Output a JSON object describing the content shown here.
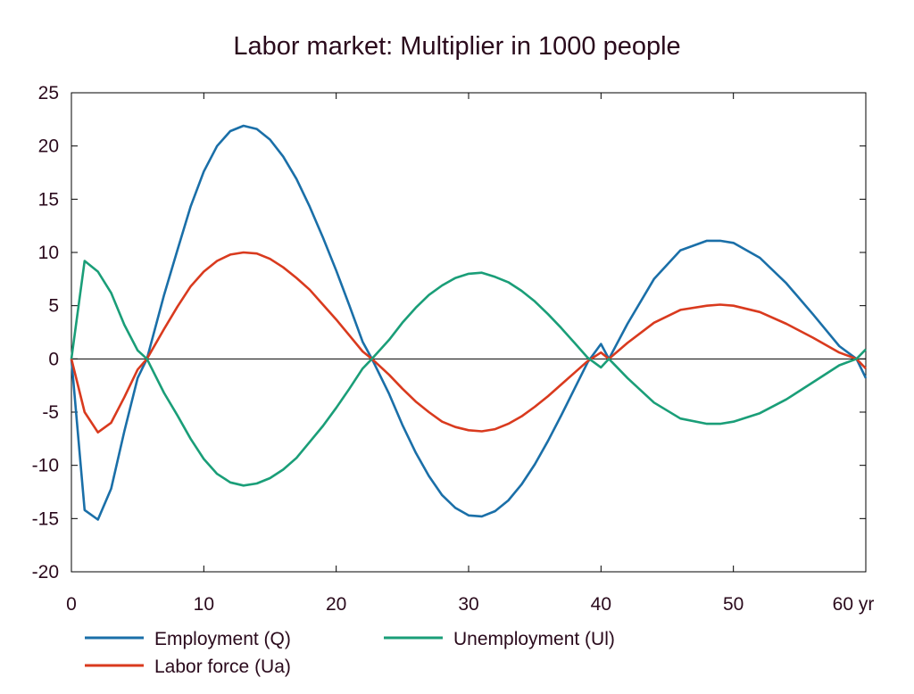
{
  "chart_data": {
    "type": "line",
    "title": "Labor market: Multiplier in 1000 people",
    "xlabel": "",
    "ylabel": "",
    "x_unit": "yr",
    "xlim": [
      0,
      60
    ],
    "ylim": [
      -20,
      25
    ],
    "x_ticks": [
      0,
      10,
      20,
      30,
      40,
      50,
      60
    ],
    "x_tick_labels": [
      "0",
      "10",
      "20",
      "30",
      "40",
      "50",
      "60 yr"
    ],
    "y_ticks": [
      -20,
      -15,
      -10,
      -5,
      0,
      5,
      10,
      15,
      20,
      25
    ],
    "y_tick_labels": [
      "-20",
      "-15",
      "-10",
      "-5",
      "0",
      "5",
      "10",
      "15",
      "20",
      "25"
    ],
    "grid": false,
    "zero_line": true,
    "legend_position": "bottom",
    "x": [
      0,
      1,
      2,
      3,
      4,
      5,
      5.7,
      7,
      8,
      9,
      10,
      11,
      12,
      13,
      14,
      15,
      16,
      17,
      18,
      19,
      20,
      21,
      22,
      22.7,
      24,
      25,
      26,
      27,
      28,
      29,
      30,
      31,
      32,
      33,
      34,
      35,
      36,
      37,
      38,
      39,
      40,
      40.6,
      42,
      44,
      46,
      48,
      49,
      50,
      52,
      54,
      56,
      58,
      59.3,
      60
    ],
    "series": [
      {
        "name": "Employment (Q)",
        "color": "#1a6fa8",
        "values": [
          0,
          -14.2,
          -15.1,
          -12.2,
          -6.8,
          -1.8,
          0,
          6.0,
          10.2,
          14.3,
          17.6,
          20.0,
          21.4,
          21.9,
          21.6,
          20.6,
          19.0,
          16.9,
          14.3,
          11.4,
          8.3,
          5.0,
          1.6,
          0,
          -3.3,
          -6.2,
          -8.8,
          -11.0,
          -12.8,
          -14.0,
          -14.7,
          -14.8,
          -14.3,
          -13.3,
          -11.8,
          -9.9,
          -7.7,
          -5.3,
          -2.8,
          -0.3,
          1.4,
          0,
          3.3,
          7.5,
          10.2,
          11.1,
          11.1,
          10.9,
          9.5,
          7.1,
          4.2,
          1.2,
          0,
          -1.8
        ]
      },
      {
        "name": "Labor force (Ua)",
        "color": "#d93a1e",
        "values": [
          0,
          -5.0,
          -6.9,
          -6.0,
          -3.6,
          -1.0,
          0,
          2.8,
          4.9,
          6.8,
          8.2,
          9.2,
          9.8,
          10.0,
          9.9,
          9.4,
          8.6,
          7.6,
          6.5,
          5.1,
          3.7,
          2.2,
          0.7,
          0,
          -1.5,
          -2.8,
          -4.0,
          -5.0,
          -5.9,
          -6.4,
          -6.7,
          -6.8,
          -6.6,
          -6.1,
          -5.4,
          -4.5,
          -3.5,
          -2.4,
          -1.3,
          -0.2,
          0.6,
          0,
          1.5,
          3.4,
          4.6,
          5.0,
          5.1,
          5.0,
          4.4,
          3.3,
          2.0,
          0.6,
          0,
          -0.9
        ]
      },
      {
        "name": "Unemployment (Ul)",
        "color": "#1a9e78",
        "values": [
          0,
          9.2,
          8.2,
          6.2,
          3.2,
          0.8,
          0,
          -3.2,
          -5.3,
          -7.5,
          -9.4,
          -10.8,
          -11.6,
          -11.9,
          -11.7,
          -11.2,
          -10.4,
          -9.3,
          -7.8,
          -6.3,
          -4.6,
          -2.8,
          -0.9,
          0,
          1.8,
          3.4,
          4.8,
          6.0,
          6.9,
          7.6,
          8.0,
          8.1,
          7.7,
          7.2,
          6.4,
          5.4,
          4.2,
          2.9,
          1.5,
          0.1,
          -0.8,
          0,
          -1.8,
          -4.1,
          -5.6,
          -6.1,
          -6.1,
          -5.9,
          -5.1,
          -3.8,
          -2.2,
          -0.6,
          0,
          0.9
        ]
      }
    ]
  }
}
